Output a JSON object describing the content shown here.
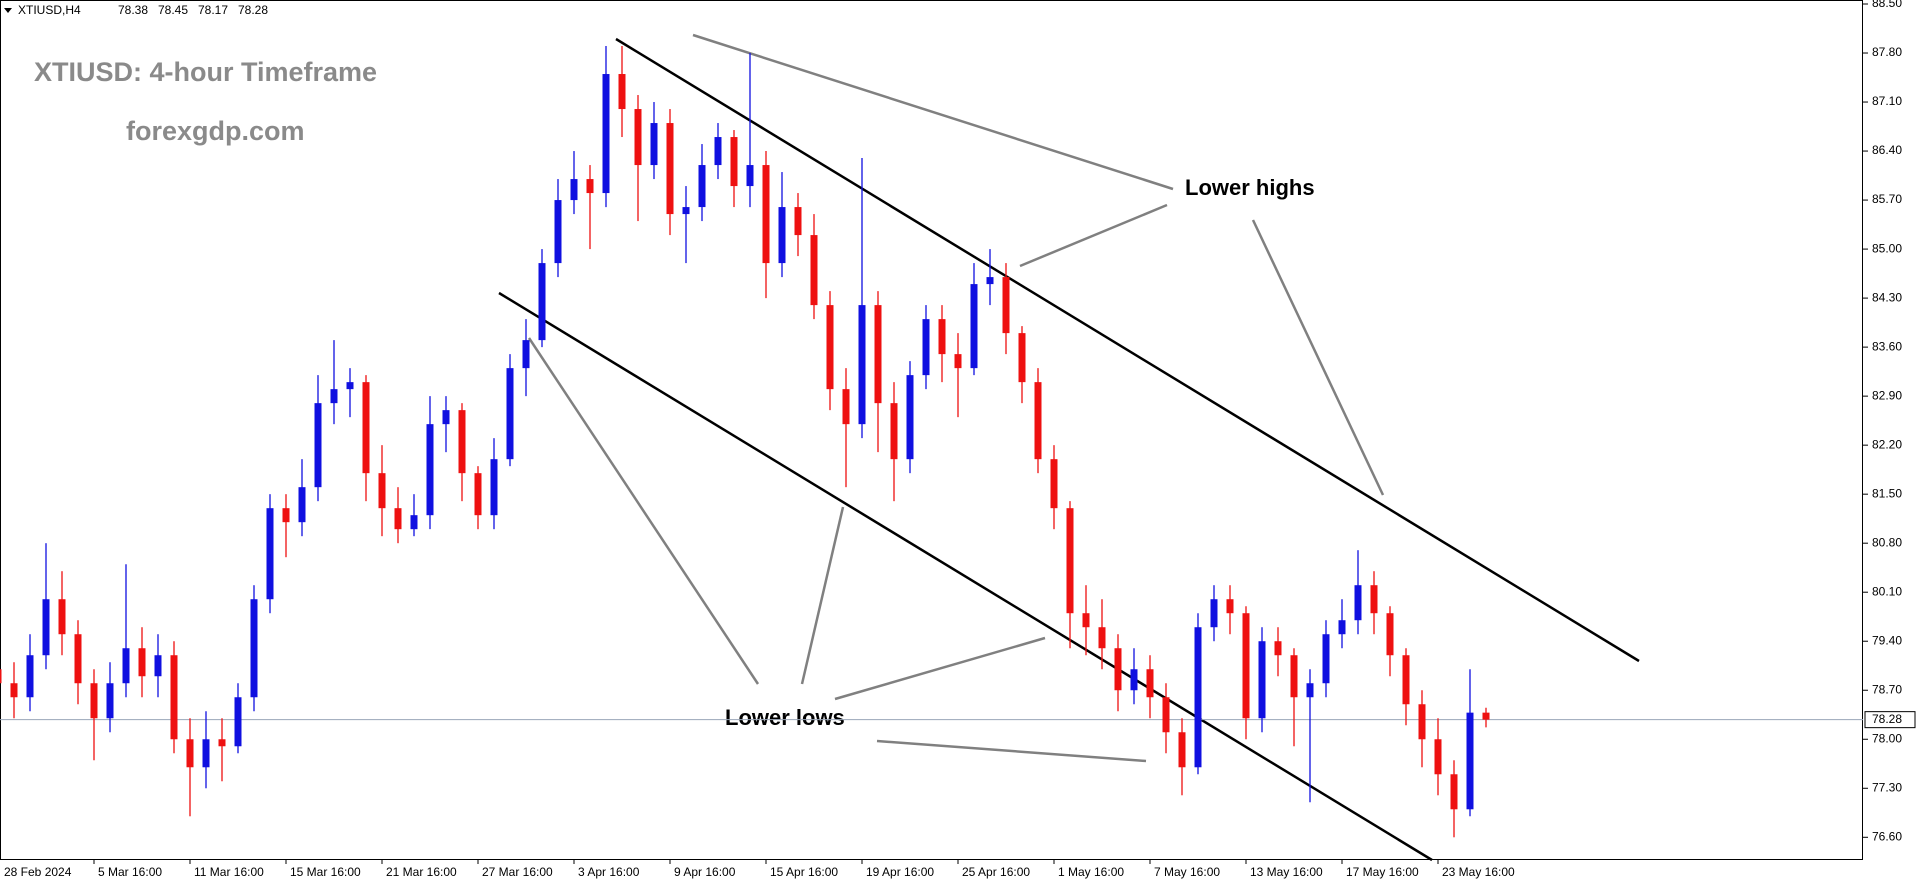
{
  "chart_data": {
    "type": "candlestick",
    "symbol": "XTIUSD,H4",
    "title": "XTIUSD: 4-hour Timeframe",
    "subtitle": "forexgdp.com",
    "annotations": [
      "Lower highs",
      "Lower lows"
    ],
    "categories": [
      "28 Feb 2024",
      null,
      null,
      null,
      null,
      null,
      "5 Mar 16:00",
      null,
      null,
      null,
      null,
      null,
      "11 Mar 16:00",
      null,
      null,
      null,
      null,
      null,
      "15 Mar 16:00",
      null,
      null,
      null,
      null,
      null,
      "21 Mar 16:00",
      null,
      null,
      null,
      null,
      null,
      "27 Mar 16:00",
      null,
      null,
      null,
      null,
      null,
      "3 Apr 16:00",
      null,
      null,
      null,
      null,
      null,
      "9 Apr 16:00",
      null,
      null,
      null,
      null,
      null,
      "15 Apr 16:00",
      null,
      null,
      null,
      null,
      null,
      "19 Apr 16:00",
      null,
      null,
      null,
      null,
      null,
      "25 Apr 16:00",
      null,
      null,
      null,
      null,
      null,
      "1 May 16:00",
      null,
      null,
      null,
      null,
      null,
      "7 May 16:00",
      null,
      null,
      null,
      null,
      null,
      "13 May 16:00",
      null,
      null,
      null,
      null,
      null,
      "17 May 16:00",
      null,
      null,
      null,
      null,
      null,
      "23 May 16:00",
      null,
      null,
      null
    ],
    "open": [
      79.0,
      78.8,
      78.6,
      79.2,
      80.0,
      79.5,
      78.8,
      78.3,
      78.8,
      79.3,
      78.9,
      79.2,
      78.0,
      77.6,
      78.0,
      77.9,
      78.6,
      80.0,
      81.3,
      81.1,
      81.6,
      82.8,
      83.0,
      83.1,
      81.8,
      81.3,
      81.0,
      81.2,
      82.5,
      82.7,
      81.8,
      81.2,
      82.0,
      83.3,
      83.7,
      84.8,
      85.7,
      86.0,
      85.8,
      87.5,
      87.0,
      86.2,
      86.8,
      85.5,
      85.6,
      86.2,
      86.6,
      85.9,
      86.2,
      84.8,
      85.6,
      85.2,
      84.2,
      83.0,
      82.5,
      84.2,
      82.8,
      82.0,
      83.2,
      84.0,
      83.5,
      83.3,
      84.5,
      84.6,
      83.8,
      83.1,
      82.0,
      81.3,
      79.8,
      79.6,
      79.3,
      78.7,
      79.0,
      78.6,
      78.1,
      77.6,
      79.6,
      80.0,
      79.8,
      78.3,
      79.4,
      79.2,
      78.6,
      78.8,
      79.5,
      79.7,
      80.2,
      79.8,
      79.2,
      78.5,
      78.0,
      77.5,
      77.0,
      78.38
    ],
    "high": [
      79.4,
      79.1,
      79.5,
      80.8,
      80.4,
      79.7,
      79.0,
      79.1,
      80.5,
      79.6,
      79.5,
      79.4,
      78.3,
      78.4,
      78.3,
      78.8,
      80.2,
      81.5,
      81.5,
      82.0,
      83.2,
      83.7,
      83.3,
      83.2,
      82.2,
      81.6,
      81.5,
      82.9,
      82.9,
      82.8,
      81.9,
      82.3,
      83.5,
      84.0,
      85.0,
      86.0,
      86.4,
      86.2,
      87.9,
      87.9,
      87.2,
      87.1,
      87.0,
      85.9,
      86.5,
      86.8,
      86.7,
      87.8,
      86.4,
      86.1,
      85.8,
      85.5,
      84.4,
      83.3,
      86.3,
      84.4,
      83.1,
      83.4,
      84.2,
      84.2,
      83.8,
      84.8,
      85.0,
      84.8,
      83.9,
      83.3,
      82.2,
      81.4,
      80.2,
      80.0,
      79.5,
      79.3,
      79.2,
      78.8,
      78.3,
      79.8,
      80.2,
      80.2,
      79.9,
      79.6,
      79.6,
      79.3,
      79.0,
      79.7,
      80.0,
      80.7,
      80.4,
      79.9,
      79.3,
      78.7,
      78.3,
      77.7,
      79.0,
      78.45
    ],
    "low": [
      78.4,
      78.3,
      78.4,
      79.0,
      79.2,
      78.5,
      77.7,
      78.1,
      78.6,
      78.6,
      78.6,
      77.8,
      76.9,
      77.3,
      77.4,
      77.8,
      78.4,
      79.8,
      80.6,
      80.9,
      81.4,
      82.5,
      82.6,
      81.4,
      80.9,
      80.8,
      80.9,
      81.0,
      82.1,
      81.4,
      81.0,
      81.0,
      81.9,
      82.9,
      83.6,
      84.6,
      85.5,
      85.0,
      85.6,
      86.6,
      85.4,
      86.0,
      85.2,
      84.8,
      85.4,
      86.0,
      85.6,
      85.6,
      84.3,
      84.6,
      84.9,
      84.0,
      82.7,
      81.6,
      82.3,
      82.1,
      81.4,
      81.8,
      83.0,
      83.1,
      82.6,
      83.2,
      84.2,
      83.5,
      82.8,
      81.8,
      81.0,
      79.3,
      79.2,
      79.0,
      78.4,
      78.5,
      78.3,
      77.8,
      77.2,
      77.5,
      79.4,
      79.5,
      78.0,
      78.1,
      78.9,
      77.9,
      77.1,
      78.6,
      79.3,
      79.5,
      79.5,
      78.9,
      78.2,
      77.6,
      77.2,
      76.6,
      76.9,
      78.17
    ],
    "close": [
      78.8,
      78.6,
      79.2,
      80.0,
      79.5,
      78.8,
      78.3,
      78.8,
      79.3,
      78.9,
      79.2,
      78.0,
      77.6,
      78.0,
      77.9,
      78.6,
      80.0,
      81.3,
      81.1,
      81.6,
      82.8,
      83.0,
      83.1,
      81.8,
      81.3,
      81.0,
      81.2,
      82.5,
      82.7,
      81.8,
      81.2,
      82.0,
      83.3,
      83.7,
      84.8,
      85.7,
      86.0,
      85.8,
      87.5,
      87.0,
      86.2,
      86.8,
      85.5,
      85.6,
      86.2,
      86.6,
      85.9,
      86.2,
      84.8,
      85.6,
      85.2,
      84.2,
      83.0,
      82.5,
      84.2,
      82.8,
      82.0,
      83.2,
      84.0,
      83.5,
      83.3,
      84.5,
      84.6,
      83.8,
      83.1,
      82.0,
      81.3,
      79.8,
      79.6,
      79.3,
      78.7,
      79.0,
      78.6,
      78.1,
      77.6,
      79.6,
      80.0,
      79.8,
      78.3,
      79.4,
      79.2,
      78.6,
      78.8,
      79.5,
      79.7,
      80.2,
      79.8,
      79.2,
      78.5,
      78.0,
      77.5,
      77.0,
      78.38,
      78.28
    ],
    "up_color": "#1010e0",
    "down_color": "#ee1111",
    "ylim": [
      76.29,
      88.5
    ],
    "yticks": [
      {
        "value": 88.5,
        "label": "88.50"
      },
      {
        "value": 87.8,
        "label": "87.80"
      },
      {
        "value": 87.1,
        "label": "87.10"
      },
      {
        "value": 86.4,
        "label": "86.40"
      },
      {
        "value": 85.7,
        "label": "85.70"
      },
      {
        "value": 85.0,
        "label": "85.00"
      },
      {
        "value": 84.3,
        "label": "84.30"
      },
      {
        "value": 83.6,
        "label": "83.60"
      },
      {
        "value": 82.9,
        "label": "82.90"
      },
      {
        "value": 82.2,
        "label": "82.20"
      },
      {
        "value": 81.5,
        "label": "81.50"
      },
      {
        "value": 80.8,
        "label": "80.80"
      },
      {
        "value": 80.1,
        "label": "80.10"
      },
      {
        "value": 79.4,
        "label": "79.40"
      },
      {
        "value": 78.7,
        "label": "78.70"
      },
      {
        "value": 78.0,
        "label": "78.00"
      },
      {
        "value": 77.3,
        "label": "77.30"
      },
      {
        "value": 76.6,
        "label": "76.60"
      }
    ]
  }
}
